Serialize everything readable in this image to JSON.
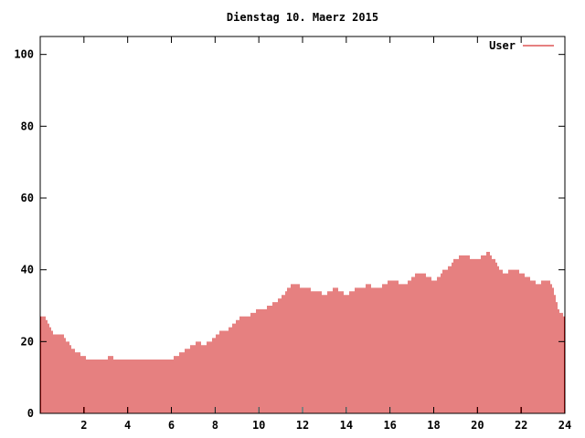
{
  "chart_data": {
    "type": "bar",
    "title": "Dienstag 10. Maerz 2015",
    "xlabel": "",
    "ylabel": "",
    "xlim": [
      0,
      24
    ],
    "ylim": [
      0,
      105
    ],
    "x_ticks": [
      2,
      4,
      6,
      8,
      10,
      12,
      14,
      16,
      18,
      20,
      22,
      24
    ],
    "y_ticks": [
      0,
      20,
      40,
      60,
      80,
      100
    ],
    "grid": false,
    "legend_position": "top-right",
    "series": [
      {
        "name": "User",
        "color": "#cc0000",
        "points": [
          [
            0.0,
            27
          ],
          [
            0.25,
            27
          ],
          [
            0.5,
            23
          ],
          [
            0.75,
            22
          ],
          [
            1.0,
            22
          ],
          [
            1.25,
            20
          ],
          [
            1.5,
            18
          ],
          [
            1.75,
            17
          ],
          [
            2.0,
            16
          ],
          [
            2.25,
            15
          ],
          [
            2.5,
            15
          ],
          [
            2.75,
            15
          ],
          [
            3.0,
            15
          ],
          [
            3.25,
            16
          ],
          [
            3.5,
            15
          ],
          [
            3.75,
            15
          ],
          [
            4.0,
            15
          ],
          [
            4.25,
            15
          ],
          [
            4.5,
            15
          ],
          [
            4.75,
            15
          ],
          [
            5.0,
            15
          ],
          [
            5.25,
            15
          ],
          [
            5.5,
            15
          ],
          [
            5.75,
            15
          ],
          [
            6.0,
            15
          ],
          [
            6.25,
            16
          ],
          [
            6.5,
            17
          ],
          [
            6.75,
            18
          ],
          [
            7.0,
            19
          ],
          [
            7.25,
            20
          ],
          [
            7.5,
            19
          ],
          [
            7.75,
            20
          ],
          [
            8.0,
            21
          ],
          [
            8.25,
            23
          ],
          [
            8.5,
            23
          ],
          [
            8.75,
            24
          ],
          [
            9.0,
            26
          ],
          [
            9.25,
            27
          ],
          [
            9.5,
            27
          ],
          [
            9.75,
            28
          ],
          [
            10.0,
            29
          ],
          [
            10.25,
            29
          ],
          [
            10.5,
            30
          ],
          [
            10.75,
            31
          ],
          [
            11.0,
            32
          ],
          [
            11.25,
            34
          ],
          [
            11.5,
            36
          ],
          [
            11.75,
            36
          ],
          [
            12.0,
            35
          ],
          [
            12.25,
            35
          ],
          [
            12.5,
            34
          ],
          [
            12.75,
            34
          ],
          [
            13.0,
            33
          ],
          [
            13.25,
            34
          ],
          [
            13.5,
            35
          ],
          [
            13.75,
            34
          ],
          [
            14.0,
            33
          ],
          [
            14.25,
            34
          ],
          [
            14.5,
            35
          ],
          [
            14.75,
            35
          ],
          [
            15.0,
            36
          ],
          [
            15.25,
            35
          ],
          [
            15.5,
            35
          ],
          [
            15.75,
            36
          ],
          [
            16.0,
            37
          ],
          [
            16.25,
            37
          ],
          [
            16.5,
            36
          ],
          [
            16.75,
            36
          ],
          [
            17.0,
            38
          ],
          [
            17.25,
            39
          ],
          [
            17.5,
            39
          ],
          [
            17.75,
            38
          ],
          [
            18.0,
            37
          ],
          [
            18.25,
            38
          ],
          [
            18.5,
            40
          ],
          [
            18.75,
            41
          ],
          [
            19.0,
            43
          ],
          [
            19.25,
            44
          ],
          [
            19.5,
            44
          ],
          [
            19.75,
            43
          ],
          [
            20.0,
            43
          ],
          [
            20.25,
            44
          ],
          [
            20.5,
            45
          ],
          [
            20.75,
            43
          ],
          [
            21.0,
            40
          ],
          [
            21.25,
            39
          ],
          [
            21.5,
            40
          ],
          [
            21.75,
            40
          ],
          [
            22.0,
            39
          ],
          [
            22.25,
            38
          ],
          [
            22.5,
            37
          ],
          [
            22.75,
            36
          ],
          [
            23.0,
            37
          ],
          [
            23.25,
            37
          ],
          [
            23.5,
            34
          ],
          [
            23.75,
            28
          ],
          [
            24.0,
            27
          ]
        ]
      }
    ]
  }
}
